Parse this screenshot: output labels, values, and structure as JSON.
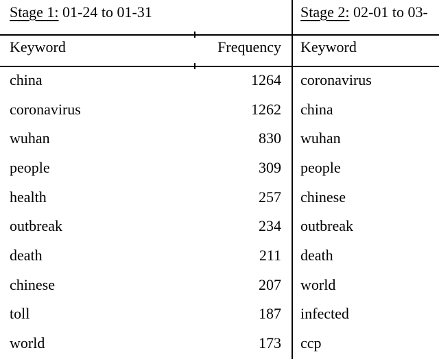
{
  "colors": {
    "background": "#ffffff",
    "text": "#000000",
    "rule": "#000000"
  },
  "stage1": {
    "title": "Stage 1:",
    "range": "01-24 to 01-31",
    "columns": {
      "keyword": "Keyword",
      "frequency": "Frequency"
    },
    "rows": [
      {
        "keyword": "china",
        "frequency": "1264"
      },
      {
        "keyword": "coronavirus",
        "frequency": "1262"
      },
      {
        "keyword": "wuhan",
        "frequency": "830"
      },
      {
        "keyword": "people",
        "frequency": "309"
      },
      {
        "keyword": "health",
        "frequency": "257"
      },
      {
        "keyword": "outbreak",
        "frequency": "234"
      },
      {
        "keyword": "death",
        "frequency": "211"
      },
      {
        "keyword": "chinese",
        "frequency": "207"
      },
      {
        "keyword": "toll",
        "frequency": "187"
      },
      {
        "keyword": "world",
        "frequency": "173"
      }
    ]
  },
  "stage2": {
    "title": "Stage 2:",
    "range": "02-01 to 03-",
    "columns": {
      "keyword": "Keyword"
    },
    "rows": [
      {
        "keyword": "coronavirus"
      },
      {
        "keyword": "china"
      },
      {
        "keyword": "wuhan"
      },
      {
        "keyword": "people"
      },
      {
        "keyword": "chinese"
      },
      {
        "keyword": "outbreak"
      },
      {
        "keyword": "death"
      },
      {
        "keyword": "world"
      },
      {
        "keyword": "infected"
      },
      {
        "keyword": "ccp"
      }
    ]
  }
}
